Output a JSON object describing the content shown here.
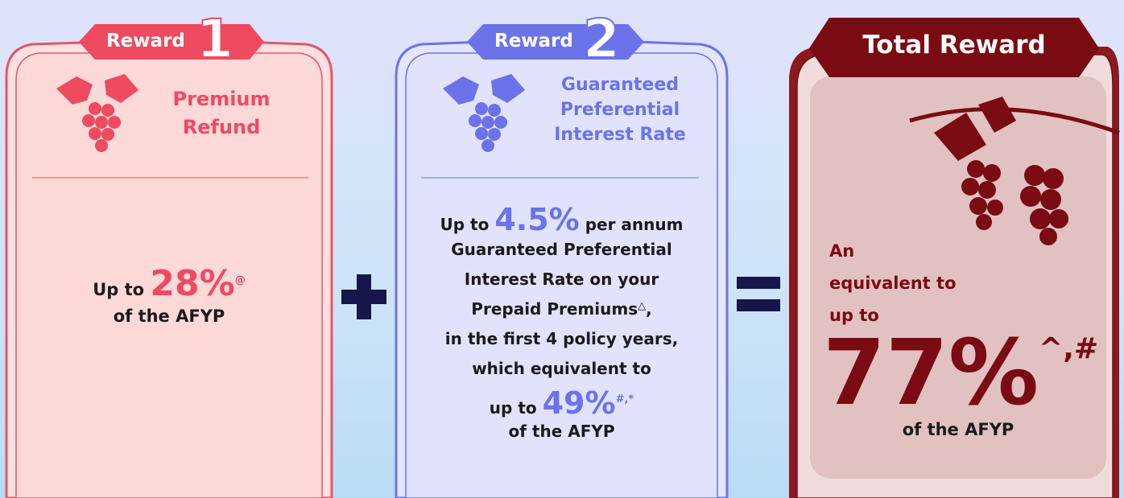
{
  "cards": [
    {
      "badge": "Reward",
      "number": "1",
      "title": [
        "Premium",
        "Refund"
      ],
      "body": {
        "prefix": "Up to",
        "highlight": "28%",
        "note": "@",
        "suffix": "of the AFYP"
      }
    },
    {
      "badge": "Reward",
      "number": "2",
      "title": [
        "Guaranteed",
        "Preferential",
        "Interest Rate"
      ],
      "body": {
        "line0_prefix": "Up to",
        "line0_highlight": "4.5%",
        "line0_suffix": "per annum",
        "line1": "Guaranteed Preferential",
        "line2": "Interest Rate on your",
        "line3": "Prepaid Premiums",
        "line3_note": "△",
        "line3_end": ",",
        "line4": "in the first 4 policy years,",
        "line5": "which equivalent to",
        "line6_prefix": "up to",
        "line6_highlight": "49%",
        "line6_note": "#,*",
        "line7": "of the AFYP"
      }
    },
    {
      "badge": "Total Reward",
      "lead": [
        "An",
        "equivalent to",
        "up to"
      ],
      "highlight": "77%",
      "note": "^,#",
      "suffix": "of the AFYP"
    }
  ]
}
